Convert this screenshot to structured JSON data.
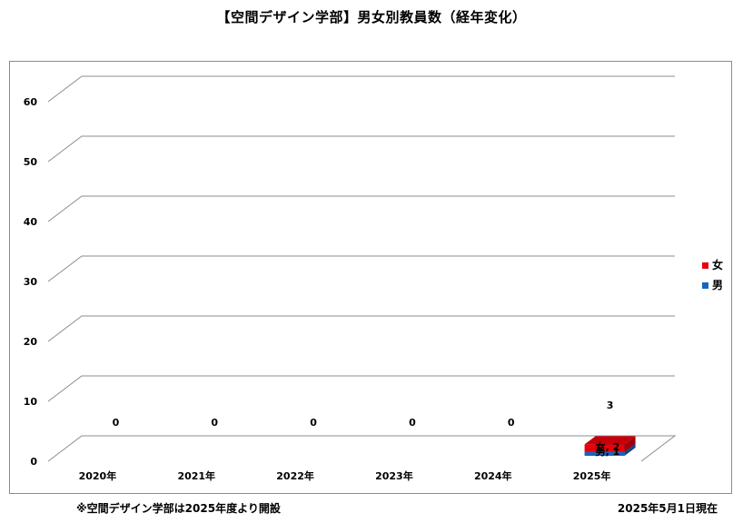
{
  "title": "【空間デザイン学部】男女別教員数（経年変化）",
  "footnote_left": "※空間デザイン学部は2025年度より開設",
  "footnote_right": "2025年5月1日現在",
  "colors": {
    "female": "#e8000b",
    "male": "#1565c0",
    "grid": "#8c8c8c"
  },
  "chart_data": {
    "type": "bar",
    "stacked": true,
    "three_d": true,
    "title": "【空間デザイン学部】男女別教員数（経年変化）",
    "xlabel": "",
    "ylabel": "",
    "categories": [
      "2020年",
      "2021年",
      "2022年",
      "2023年",
      "2024年",
      "2025年"
    ],
    "series": [
      {
        "name": "男",
        "values": [
          0,
          0,
          0,
          0,
          0,
          1
        ]
      },
      {
        "name": "女",
        "values": [
          0,
          0,
          0,
          0,
          0,
          2
        ]
      }
    ],
    "totals": [
      0,
      0,
      0,
      0,
      0,
      3
    ],
    "total_labels": [
      "0",
      "0",
      "0",
      "0",
      "0",
      "3"
    ],
    "segment_labels": {
      "male_2025": "男, 1",
      "female_2025": "女, 2"
    },
    "ylim": [
      0,
      60
    ],
    "yticks": [
      0,
      10,
      20,
      30,
      40,
      50,
      60
    ],
    "grid": true,
    "legend_position": "right",
    "legend": [
      "女",
      "男"
    ]
  }
}
